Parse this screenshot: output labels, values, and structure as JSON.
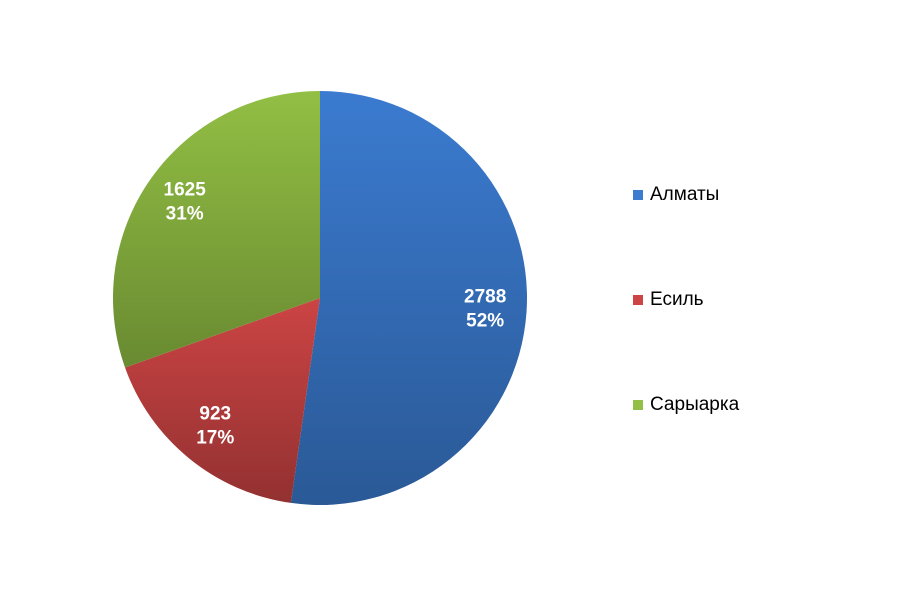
{
  "chart_data": {
    "type": "pie",
    "categories": [
      "Алматы",
      "Есиль",
      "Сарыарка"
    ],
    "values": [
      2788,
      923,
      1625
    ],
    "percent_labels": [
      "52%",
      "17%",
      "31%"
    ],
    "colors": [
      "#3b7bd0",
      "#cc4444",
      "#92bf44"
    ],
    "legend": "right"
  }
}
